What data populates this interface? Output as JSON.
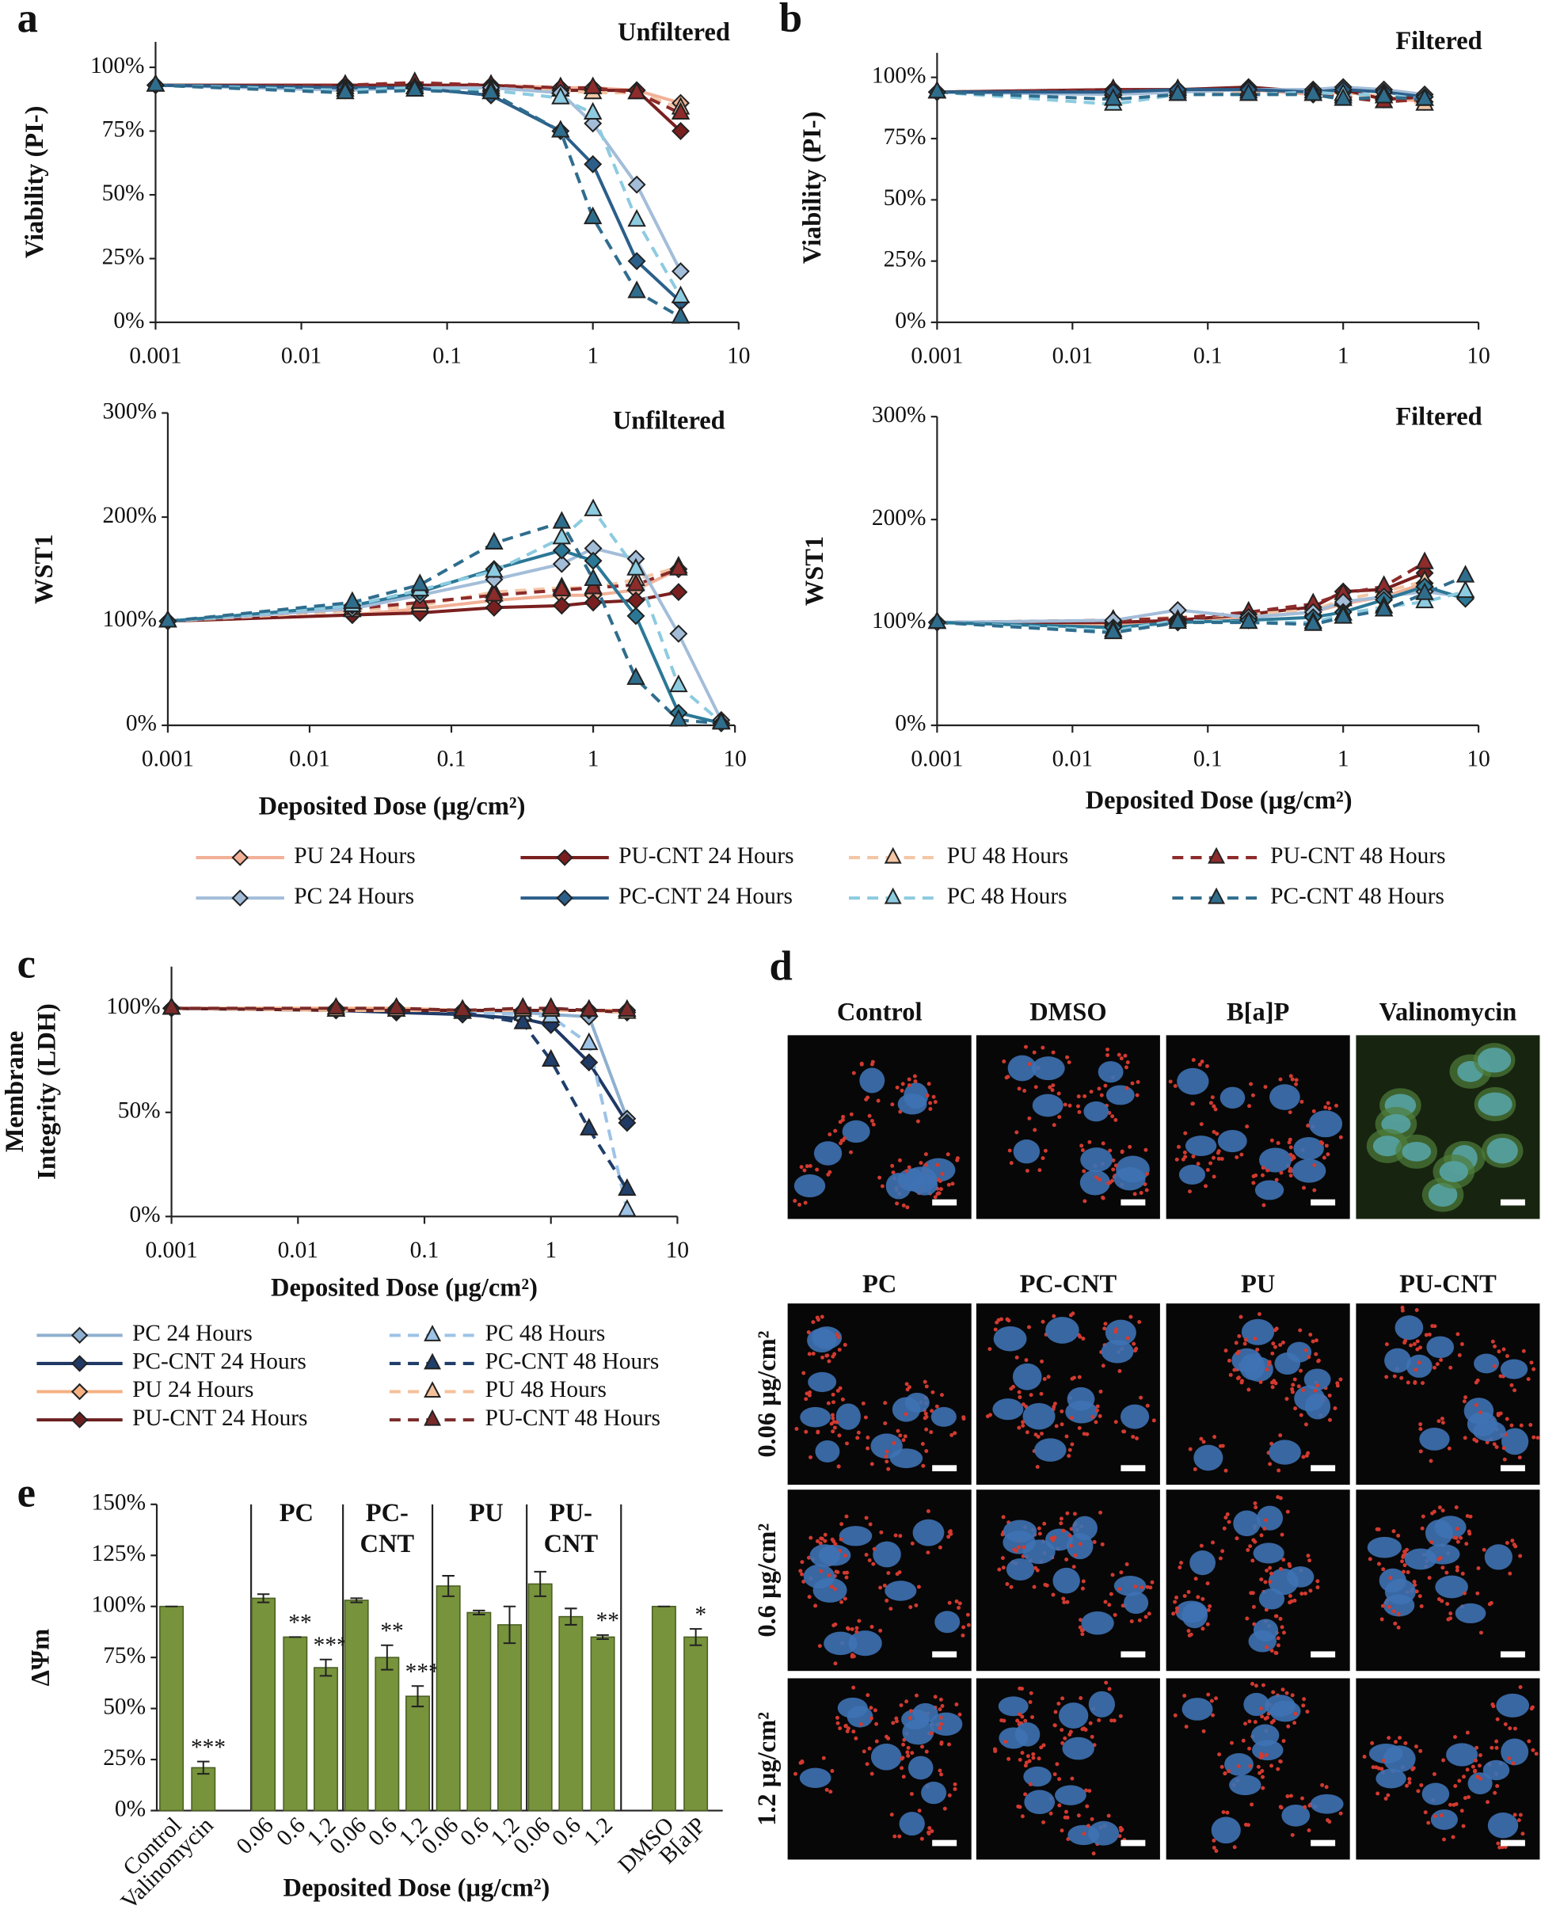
{
  "chart_data": [
    {
      "type": "line",
      "panel": "a",
      "title": "Unfiltered",
      "ylabel": "Viability (PI-)",
      "xscale": "log",
      "x": [
        0.001,
        0.02,
        0.06,
        0.2,
        0.6,
        1,
        2,
        4
      ],
      "xlim": [
        0.001,
        10
      ],
      "xticks": [
        0.001,
        0.01,
        0.1,
        1,
        10
      ],
      "ylim": [
        0,
        110
      ],
      "yticks": [
        {
          "value": 0,
          "label": "0%"
        },
        {
          "value": 25,
          "label": "25%"
        },
        {
          "value": 50,
          "label": "50%"
        },
        {
          "value": 75,
          "label": "75%"
        },
        {
          "value": 100,
          "label": "100%"
        }
      ],
      "series": [
        {
          "name": "PU 24 Hours",
          "color": "#f2b197",
          "dash": false,
          "marker": "diamond",
          "values": [
            93,
            93,
            93,
            93,
            92,
            92,
            91,
            86
          ]
        },
        {
          "name": "PU-CNT 24 Hours",
          "color": "#7a1f1f",
          "dash": false,
          "marker": "diamond",
          "values": [
            93,
            93,
            93,
            93,
            91,
            91,
            91,
            75
          ]
        },
        {
          "name": "PU 48 Hours",
          "color": "#f3c6a5",
          "dash": true,
          "marker": "triangle",
          "values": [
            93,
            92,
            92,
            92,
            91,
            90,
            90,
            84
          ]
        },
        {
          "name": "PU-CNT 48 Hours",
          "color": "#8e2b2b",
          "dash": true,
          "marker": "triangle",
          "values": [
            93,
            93,
            94,
            93,
            92,
            92,
            90,
            82
          ]
        },
        {
          "name": "PC 24 Hours",
          "color": "#a3bdd9",
          "dash": false,
          "marker": "diamond",
          "values": [
            93,
            91,
            92,
            92,
            90,
            78,
            54,
            20
          ]
        },
        {
          "name": "PC-CNT 24 Hours",
          "color": "#2b5f8a",
          "dash": false,
          "marker": "diamond",
          "values": [
            93,
            92,
            92,
            89,
            75,
            62,
            24,
            8
          ]
        },
        {
          "name": "PC 48 Hours",
          "color": "#8ccbe0",
          "dash": true,
          "marker": "triangle",
          "values": [
            93,
            91,
            92,
            91,
            88,
            82,
            40,
            10
          ]
        },
        {
          "name": "PC-CNT 48 Hours",
          "color": "#2f6d8d",
          "dash": true,
          "marker": "triangle",
          "values": [
            93,
            90,
            91,
            90,
            75,
            41,
            12,
            2
          ]
        }
      ]
    },
    {
      "type": "line",
      "panel": "b",
      "title": "Filtered",
      "ylabel": "Viability (PI-)",
      "xscale": "log",
      "x": [
        0.001,
        0.02,
        0.06,
        0.2,
        0.6,
        1,
        2,
        4
      ],
      "xlim": [
        0.001,
        10
      ],
      "xticks": [
        0.001,
        0.01,
        0.1,
        1,
        10
      ],
      "ylim": [
        0,
        110
      ],
      "yticks": [
        {
          "value": 0,
          "label": "0%"
        },
        {
          "value": 25,
          "label": "25%"
        },
        {
          "value": 50,
          "label": "50%"
        },
        {
          "value": 75,
          "label": "75%"
        },
        {
          "value": 100,
          "label": "100%"
        }
      ],
      "series": [
        {
          "name": "PU 24 Hours",
          "color": "#f2b197",
          "dash": false,
          "marker": "diamond",
          "values": [
            94,
            94,
            95,
            95,
            93,
            94,
            92,
            90
          ]
        },
        {
          "name": "PU-CNT 24 Hours",
          "color": "#7a1f1f",
          "dash": false,
          "marker": "diamond",
          "values": [
            94,
            95,
            95,
            96,
            94,
            95,
            91,
            92
          ]
        },
        {
          "name": "PU 48 Hours",
          "color": "#f3c6a5",
          "dash": true,
          "marker": "triangle",
          "values": [
            94,
            94,
            94,
            94,
            93,
            93,
            92,
            89
          ]
        },
        {
          "name": "PU-CNT 48 Hours",
          "color": "#8e2b2b",
          "dash": true,
          "marker": "triangle",
          "values": [
            94,
            95,
            95,
            95,
            93,
            92,
            90,
            91
          ]
        },
        {
          "name": "PC 24 Hours",
          "color": "#a3bdd9",
          "dash": false,
          "marker": "diamond",
          "values": [
            94,
            93,
            94,
            95,
            95,
            96,
            95,
            93
          ]
        },
        {
          "name": "PC-CNT 24 Hours",
          "color": "#2b5f8a",
          "dash": false,
          "marker": "diamond",
          "values": [
            94,
            94,
            95,
            95,
            94,
            95,
            94,
            92
          ]
        },
        {
          "name": "PC 48 Hours",
          "color": "#8ccbe0",
          "dash": true,
          "marker": "triangle",
          "values": [
            94,
            89,
            93,
            93,
            94,
            93,
            93,
            91
          ]
        },
        {
          "name": "PC-CNT 48 Hours",
          "color": "#2f6d8d",
          "dash": true,
          "marker": "triangle",
          "values": [
            94,
            91,
            93,
            93,
            93,
            91,
            92,
            91
          ]
        }
      ]
    },
    {
      "type": "line",
      "title": "Unfiltered",
      "ylabel": "WST1",
      "xlabel": "Deposited Dose (µg/cm²)",
      "xscale": "log",
      "x": [
        0.001,
        0.02,
        0.06,
        0.2,
        0.6,
        1,
        2,
        4,
        8
      ],
      "xlim": [
        0.001,
        10
      ],
      "xticks": [
        0.001,
        0.01,
        0.1,
        1,
        10
      ],
      "ylim": [
        0,
        300
      ],
      "yticks": [
        {
          "value": 0,
          "label": "0%"
        },
        {
          "value": 100,
          "label": "100%"
        },
        {
          "value": 200,
          "label": "200%"
        },
        {
          "value": 300,
          "label": "300%"
        }
      ],
      "series": [
        {
          "name": "PU 24 Hours",
          "color": "#f2b197",
          "dash": false,
          "marker": "diamond",
          "values": [
            100,
            106,
            112,
            120,
            125,
            125,
            130,
            150,
            null
          ]
        },
        {
          "name": "PU-CNT 24 Hours",
          "color": "#7a1f1f",
          "dash": false,
          "marker": "diamond",
          "values": [
            100,
            106,
            108,
            113,
            115,
            118,
            120,
            128,
            null
          ]
        },
        {
          "name": "PU 48 Hours",
          "color": "#f3c6a5",
          "dash": true,
          "marker": "triangle",
          "values": [
            100,
            110,
            115,
            128,
            132,
            132,
            140,
            152,
            null
          ]
        },
        {
          "name": "PU-CNT 48 Hours",
          "color": "#8e2b2b",
          "dash": true,
          "marker": "triangle",
          "values": [
            100,
            112,
            118,
            125,
            130,
            132,
            135,
            150,
            null
          ]
        },
        {
          "name": "PC 24 Hours",
          "color": "#a3bdd9",
          "dash": false,
          "marker": "diamond",
          "values": [
            100,
            112,
            125,
            140,
            155,
            170,
            160,
            88,
            5
          ]
        },
        {
          "name": "PC-CNT 24 Hours",
          "color": "#2b7896",
          "dash": false,
          "marker": "diamond",
          "values": [
            100,
            115,
            128,
            150,
            168,
            158,
            105,
            12,
            2
          ]
        },
        {
          "name": "PC 48 Hours",
          "color": "#8ccbe0",
          "dash": true,
          "marker": "triangle",
          "values": [
            100,
            115,
            130,
            148,
            180,
            207,
            150,
            38,
            3
          ]
        },
        {
          "name": "PC-CNT 48 Hours",
          "color": "#2f6d8d",
          "dash": true,
          "marker": "triangle",
          "values": [
            100,
            118,
            135,
            175,
            195,
            140,
            45,
            5,
            2
          ]
        }
      ]
    },
    {
      "type": "line",
      "title": "Filtered",
      "ylabel": "WST1",
      "xlabel": "Deposited Dose (µg/cm²)",
      "xscale": "log",
      "x": [
        0.001,
        0.02,
        0.06,
        0.2,
        0.6,
        1,
        2,
        4,
        8
      ],
      "xlim": [
        0.001,
        10
      ],
      "xticks": [
        0.001,
        0.01,
        0.1,
        1,
        10
      ],
      "ylim": [
        0,
        300
      ],
      "yticks": [
        {
          "value": 0,
          "label": "0%"
        },
        {
          "value": 100,
          "label": "100%"
        },
        {
          "value": 200,
          "label": "200%"
        },
        {
          "value": 300,
          "label": "300%"
        }
      ],
      "series": [
        {
          "name": "PU 24 Hours",
          "color": "#f2b197",
          "dash": false,
          "marker": "diamond",
          "values": [
            100,
            98,
            103,
            105,
            110,
            118,
            125,
            138,
            null
          ]
        },
        {
          "name": "PU-CNT 24 Hours",
          "color": "#7a1f1f",
          "dash": false,
          "marker": "diamond",
          "values": [
            100,
            100,
            102,
            108,
            115,
            130,
            132,
            148,
            null
          ]
        },
        {
          "name": "PU 48 Hours",
          "color": "#f3c6a5",
          "dash": true,
          "marker": "triangle",
          "values": [
            100,
            102,
            105,
            108,
            112,
            122,
            130,
            140,
            null
          ]
        },
        {
          "name": "PU-CNT 48 Hours",
          "color": "#8e2b2b",
          "dash": true,
          "marker": "triangle",
          "values": [
            100,
            102,
            104,
            110,
            118,
            128,
            135,
            158,
            null
          ]
        },
        {
          "name": "PC 24 Hours",
          "color": "#a3bdd9",
          "dash": false,
          "marker": "diamond",
          "values": [
            100,
            102,
            112,
            105,
            110,
            120,
            125,
            130,
            125
          ]
        },
        {
          "name": "PC-CNT 24 Hours",
          "color": "#2b7896",
          "dash": false,
          "marker": "diamond",
          "values": [
            100,
            95,
            100,
            102,
            105,
            110,
            122,
            135,
            123
          ]
        },
        {
          "name": "PC 48 Hours",
          "color": "#8ccbe0",
          "dash": true,
          "marker": "triangle",
          "values": [
            100,
            92,
            102,
            100,
            100,
            108,
            115,
            120,
            130
          ]
        },
        {
          "name": "PC-CNT 48 Hours",
          "color": "#2f6d8d",
          "dash": true,
          "marker": "triangle",
          "values": [
            100,
            90,
            100,
            100,
            98,
            105,
            112,
            128,
            145
          ]
        }
      ]
    },
    {
      "type": "line",
      "panel": "c",
      "ylabel": [
        "Membrane",
        "Integrity (LDH)"
      ],
      "xlabel": "Deposited Dose (µg/cm²)",
      "xscale": "log",
      "x": [
        0.001,
        0.02,
        0.06,
        0.2,
        0.6,
        1,
        2,
        4
      ],
      "xlim": [
        0.001,
        10
      ],
      "xticks": [
        0.001,
        0.01,
        0.1,
        1,
        10
      ],
      "ylim": [
        0,
        120
      ],
      "yticks": [
        {
          "value": 0,
          "label": "0%"
        },
        {
          "value": 50,
          "label": "50%"
        },
        {
          "value": 100,
          "label": "100%"
        }
      ],
      "series": [
        {
          "name": "PC 24 Hours",
          "color": "#8fb0d0",
          "dash": false,
          "marker": "diamond",
          "values": [
            100,
            99,
            99,
            99,
            98,
            97,
            96,
            47
          ]
        },
        {
          "name": "PC-CNT 24 Hours",
          "color": "#1f3864",
          "dash": false,
          "marker": "diamond",
          "values": [
            100,
            99,
            98,
            97,
            95,
            92,
            74,
            45
          ]
        },
        {
          "name": "PU 24 Hours",
          "color": "#f4b183",
          "dash": false,
          "marker": "diamond",
          "values": [
            100,
            100,
            100,
            99,
            99,
            99,
            99,
            99
          ]
        },
        {
          "name": "PU-CNT 24 Hours",
          "color": "#6b1f1f",
          "dash": false,
          "marker": "diamond",
          "values": [
            100,
            99,
            99,
            99,
            99,
            99,
            99,
            98
          ]
        },
        {
          "name": "PC 48 Hours",
          "color": "#9dc3e6",
          "dash": true,
          "marker": "triangle",
          "values": [
            100,
            99,
            99,
            98,
            97,
            96,
            83,
            3
          ]
        },
        {
          "name": "PC-CNT 48 Hours",
          "color": "#203f6a",
          "dash": true,
          "marker": "triangle",
          "values": [
            100,
            99,
            99,
            98,
            93,
            75,
            42,
            13
          ]
        },
        {
          "name": "PU 48 Hours",
          "color": "#f4c09a",
          "dash": true,
          "marker": "triangle",
          "values": [
            100,
            99,
            99,
            99,
            99,
            99,
            99,
            98
          ]
        },
        {
          "name": "PU-CNT 48 Hours",
          "color": "#7b2a2a",
          "dash": true,
          "marker": "triangle",
          "values": [
            100,
            100,
            100,
            99,
            100,
            100,
            99,
            99
          ]
        }
      ]
    },
    {
      "type": "bar",
      "panel": "e",
      "ylabel": "ΔΨm",
      "xlabel": "Deposited Dose (µg/cm²)",
      "color": "#77933c",
      "categories": [
        "Control",
        "Valinomycin",
        "0.06",
        "0.6",
        "1.2",
        "0.06",
        "0.6",
        "1.2",
        "0.06",
        "0.6",
        "1.2",
        "0.06",
        "0.6",
        "1.2",
        "DMSO",
        "B[a]P"
      ],
      "values": [
        100,
        21,
        104,
        85,
        70,
        103,
        75,
        56,
        110,
        97,
        91,
        111,
        95,
        85,
        100,
        85
      ],
      "errors": [
        0,
        3,
        2,
        0,
        4,
        1,
        6,
        5,
        5,
        1,
        9,
        6,
        4,
        1,
        0,
        4
      ],
      "value_annotations": [
        null,
        "***",
        null,
        "**",
        "***",
        null,
        "**",
        "***",
        null,
        null,
        null,
        null,
        null,
        "**",
        null,
        "*"
      ],
      "groups": [
        [
          "PC"
        ],
        [
          "PC-",
          "CNT"
        ],
        [
          "PU"
        ],
        [
          "PU-",
          "CNT"
        ]
      ],
      "ylim": [
        0,
        150
      ],
      "yticks": [
        {
          "value": 0,
          "label": "0%"
        },
        {
          "value": 25,
          "label": "25%"
        },
        {
          "value": 50,
          "label": "50%"
        },
        {
          "value": 75,
          "label": "75%"
        },
        {
          "value": 100,
          "label": "100%"
        },
        {
          "value": 125,
          "label": "125%"
        },
        {
          "value": 150,
          "label": "150%"
        }
      ]
    }
  ],
  "image_panel": {
    "panel": "d",
    "top_headers": [
      "Control",
      "DMSO",
      "B[a]P",
      "Valinomycin"
    ],
    "bottom_headers": [
      "PC",
      "PC-CNT",
      "PU",
      "PU-CNT"
    ],
    "row_labels": [
      "0.06 µg/cm²",
      "0.6 µg/cm²",
      "1.2 µg/cm²"
    ]
  }
}
